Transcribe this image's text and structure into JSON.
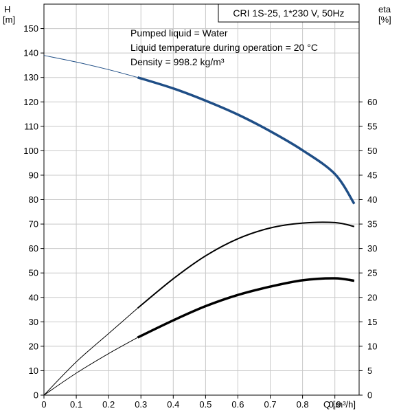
{
  "chart_data": {
    "type": "line",
    "title": "CRI 1S-25, 1*230 V, 50Hz",
    "info_lines": [
      "Pumped liquid = Water",
      "Liquid temperature during operation = 20 °C",
      "Density = 998.2 kg/m³"
    ],
    "x_axis": {
      "label": "Q [m³/h]",
      "range": [
        0,
        0.975
      ],
      "ticks": [
        0,
        0.1,
        0.2,
        0.3,
        0.4,
        0.5,
        0.6,
        0.7,
        0.8,
        0.9
      ],
      "tick_labels": [
        "0",
        "0.1",
        "0.2",
        "0.3",
        "0.4",
        "0.5",
        "0.6",
        "0.7",
        "0.8",
        "0.9"
      ]
    },
    "y_left": {
      "label_line1": "H",
      "label_line2": "[m]",
      "range": [
        0,
        160
      ],
      "ticks": [
        0,
        10,
        20,
        30,
        40,
        50,
        60,
        70,
        80,
        90,
        100,
        110,
        120,
        130,
        140,
        150
      ]
    },
    "y_right": {
      "label_line1": "eta",
      "label_line2": "[%]",
      "range": [
        0,
        80
      ],
      "ticks": [
        0,
        5,
        10,
        15,
        20,
        25,
        30,
        35,
        40,
        45,
        50,
        55,
        60
      ]
    },
    "grid": true,
    "series": [
      {
        "axis": "left",
        "color": "#1f4e86",
        "thin_points": [
          [
            0,
            139
          ],
          [
            0.1,
            136.3
          ],
          [
            0.2,
            133.2
          ],
          [
            0.29,
            130
          ]
        ],
        "thick_points": [
          [
            0.29,
            130
          ],
          [
            0.4,
            125.5
          ],
          [
            0.5,
            120.5
          ],
          [
            0.6,
            114.8
          ],
          [
            0.7,
            108
          ],
          [
            0.8,
            100.2
          ],
          [
            0.9,
            90.5
          ],
          [
            0.96,
            78.3
          ]
        ]
      },
      {
        "axis": "right",
        "color": "#000000",
        "thin_points": [
          [
            0,
            0
          ],
          [
            0.1,
            6.8
          ],
          [
            0.2,
            12.6
          ],
          [
            0.29,
            17.8
          ]
        ],
        "thick_points": [
          [
            0.29,
            17.8
          ],
          [
            0.4,
            23.8
          ],
          [
            0.5,
            28.5
          ],
          [
            0.6,
            32
          ],
          [
            0.7,
            34.2
          ],
          [
            0.8,
            35.2
          ],
          [
            0.9,
            35.3
          ],
          [
            0.96,
            34.5
          ]
        ]
      },
      {
        "axis": "right",
        "color": "#000000",
        "thin_points": [
          [
            0,
            0
          ],
          [
            0.1,
            4.5
          ],
          [
            0.2,
            8.5
          ],
          [
            0.29,
            11.8
          ]
        ],
        "thick_points": [
          [
            0.29,
            11.8
          ],
          [
            0.4,
            15.3
          ],
          [
            0.5,
            18.2
          ],
          [
            0.6,
            20.5
          ],
          [
            0.7,
            22.2
          ],
          [
            0.8,
            23.5
          ],
          [
            0.9,
            23.9
          ],
          [
            0.96,
            23.4
          ]
        ]
      }
    ]
  }
}
